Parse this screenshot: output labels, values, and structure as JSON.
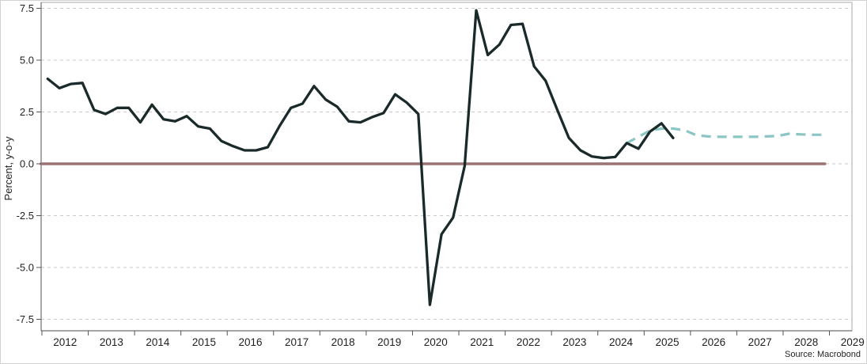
{
  "chart_data": {
    "type": "line",
    "title": "",
    "xlabel": "",
    "ylabel": "Percent, y-o-y",
    "source": "Source: Macrobond",
    "x_tick_years": [
      2012,
      2013,
      2014,
      2015,
      2016,
      2017,
      2018,
      2019,
      2020,
      2021,
      2022,
      2023,
      2024,
      2025,
      2026,
      2027,
      2028,
      2029
    ],
    "x_tick_labels": [
      "2012",
      "2013",
      "2014",
      "2015",
      "2016",
      "2017",
      "2018",
      "2019",
      "2020",
      "2021",
      "2022",
      "2023",
      "2024",
      "2025",
      "2026",
      "2027",
      "2028",
      "2029"
    ],
    "y_ticks": [
      7.5,
      5.0,
      2.5,
      0.0,
      -2.5,
      -5.0,
      -7.5
    ],
    "y_tick_labels": [
      "7.5",
      "5.0",
      "2.5",
      "0.0",
      "-2.5",
      "-5.0",
      "-7.5"
    ],
    "xlim": [
      2011.98,
      2029.49
    ],
    "ylim": [
      -8.1,
      7.8
    ],
    "grid": {
      "horizontal": true,
      "vertical": false,
      "style": "dashed"
    },
    "legend": "none",
    "series": [
      {
        "name": "zero line",
        "role": "reference",
        "color": "#9c7272",
        "style": "solid",
        "width": 3.6,
        "x": [
          2011.98,
          2028.9
        ],
        "values": [
          0,
          0
        ]
      },
      {
        "name": "forecast",
        "role": "forecast",
        "color": "#8cc6c4",
        "style": "dashed",
        "width": 3.2,
        "x": [
          2024.625,
          2024.875,
          2025.125,
          2025.375,
          2025.625,
          2025.875,
          2026.125,
          2026.375,
          2026.625,
          2026.875,
          2027.125,
          2027.375,
          2027.625,
          2027.875,
          2028.125,
          2028.375,
          2028.625,
          2028.875
        ],
        "values": [
          1.0,
          1.3,
          1.6,
          1.7,
          1.7,
          1.62,
          1.38,
          1.32,
          1.3,
          1.3,
          1.3,
          1.3,
          1.32,
          1.34,
          1.45,
          1.42,
          1.4,
          1.4
        ]
      },
      {
        "name": "history",
        "role": "actual",
        "color": "#1a2a2a",
        "style": "solid",
        "width": 3.3,
        "x": [
          2012.125,
          2012.375,
          2012.625,
          2012.875,
          2013.125,
          2013.375,
          2013.625,
          2013.875,
          2014.125,
          2014.375,
          2014.625,
          2014.875,
          2015.125,
          2015.375,
          2015.625,
          2015.875,
          2016.125,
          2016.375,
          2016.625,
          2016.875,
          2017.125,
          2017.375,
          2017.625,
          2017.875,
          2018.125,
          2018.375,
          2018.625,
          2018.875,
          2019.125,
          2019.375,
          2019.625,
          2019.875,
          2020.125,
          2020.375,
          2020.625,
          2020.875,
          2021.125,
          2021.375,
          2021.625,
          2021.875,
          2022.125,
          2022.375,
          2022.625,
          2022.875,
          2023.125,
          2023.375,
          2023.625,
          2023.875,
          2024.125,
          2024.375,
          2024.625,
          2024.875,
          2025.125,
          2025.375,
          2025.625
        ],
        "values": [
          4.1,
          3.65,
          3.85,
          3.9,
          2.6,
          2.4,
          2.7,
          2.7,
          2.0,
          2.85,
          2.15,
          2.05,
          2.3,
          1.8,
          1.7,
          1.1,
          0.85,
          0.65,
          0.65,
          0.8,
          1.8,
          2.7,
          2.9,
          3.75,
          3.1,
          2.75,
          2.05,
          2.0,
          2.25,
          2.45,
          3.35,
          2.95,
          2.4,
          -6.8,
          -3.4,
          -2.6,
          -0.1,
          7.4,
          5.25,
          5.75,
          6.7,
          6.75,
          4.7,
          4.0,
          2.6,
          1.25,
          0.65,
          0.35,
          0.28,
          0.33,
          1.0,
          0.73,
          1.55,
          1.95,
          1.25
        ]
      }
    ]
  }
}
